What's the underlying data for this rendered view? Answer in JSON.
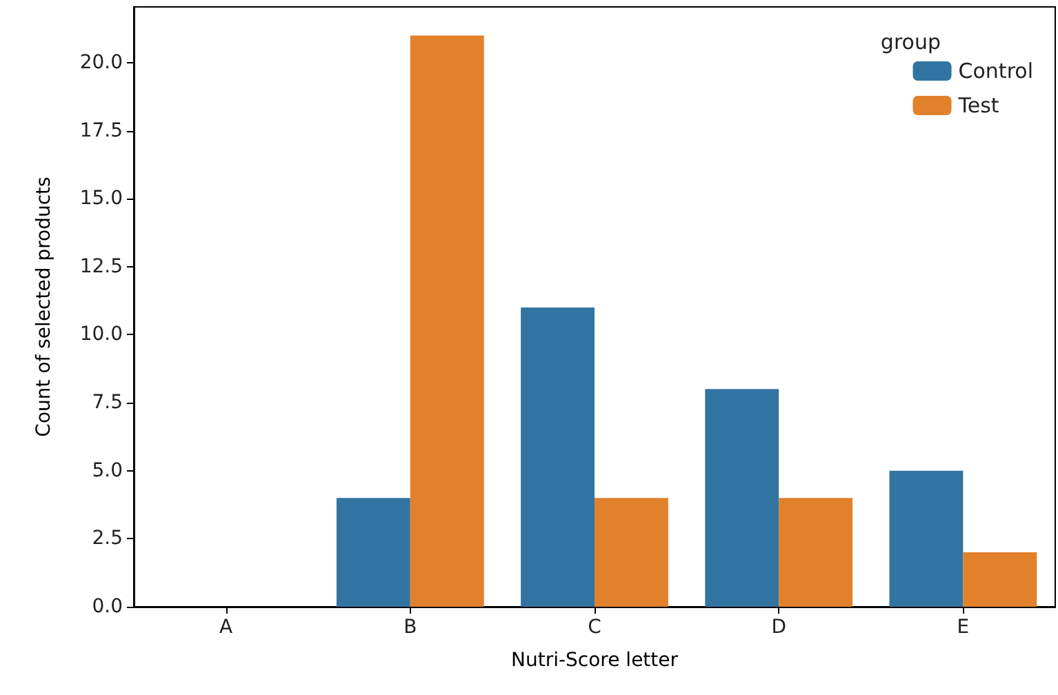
{
  "chart_data": {
    "type": "bar",
    "xlabel": "Nutri-Score letter",
    "ylabel": "Count of selected products",
    "legend_title": "group",
    "legend": "top right",
    "grid": false,
    "categories": [
      "A",
      "B",
      "C",
      "D",
      "E"
    ],
    "series": [
      {
        "name": "Control",
        "color": "#3274a1",
        "values": [
          0,
          4,
          11,
          8,
          5
        ]
      },
      {
        "name": "Test",
        "color": "#e1812c",
        "values": [
          0,
          21,
          4,
          4,
          2
        ]
      }
    ],
    "ylim": [
      0,
      22.05
    ],
    "yticks": [
      {
        "value": 0,
        "label": "0.0"
      },
      {
        "value": 2.5,
        "label": "2.5"
      },
      {
        "value": 5,
        "label": "5.0"
      },
      {
        "value": 7.5,
        "label": "7.5"
      },
      {
        "value": 10,
        "label": "10.0"
      },
      {
        "value": 12.5,
        "label": "12.5"
      },
      {
        "value": 15,
        "label": "15.0"
      },
      {
        "value": 17.5,
        "label": "17.5"
      },
      {
        "value": 20,
        "label": "20.0"
      }
    ]
  }
}
